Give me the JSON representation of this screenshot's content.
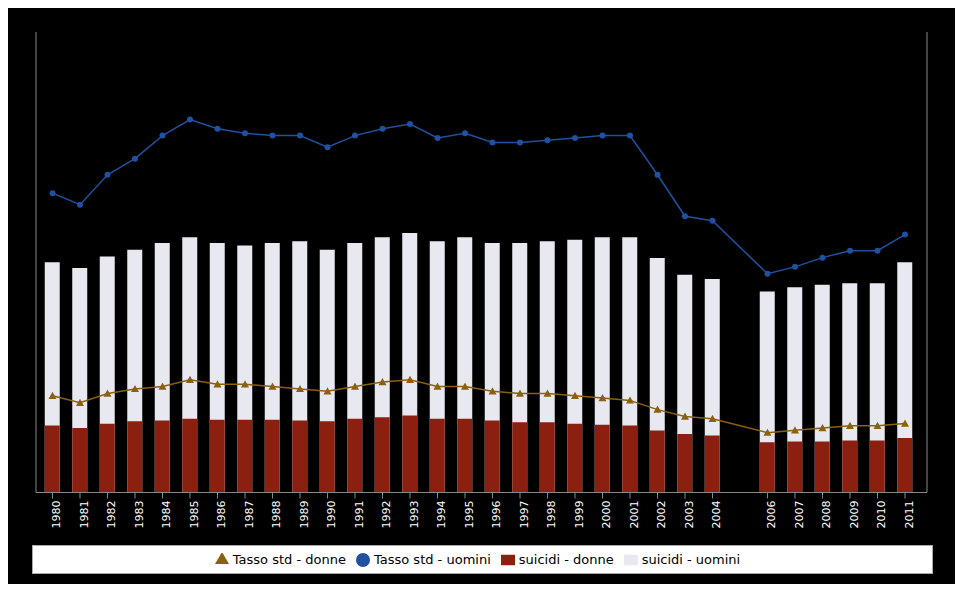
{
  "chart_data": {
    "type": "bar",
    "x": [
      1980,
      1981,
      1982,
      1983,
      1984,
      1985,
      1986,
      1987,
      1988,
      1989,
      1990,
      1991,
      1992,
      1993,
      1994,
      1995,
      1996,
      1997,
      1998,
      1999,
      2000,
      2001,
      2002,
      2003,
      2004,
      2006,
      2007,
      2008,
      2009,
      2010,
      2011
    ],
    "xlim": [
      1979.4,
      2011.8
    ],
    "xticks": [
      1980,
      1981,
      1982,
      1983,
      1984,
      1985,
      1986,
      1987,
      1988,
      1989,
      1990,
      1991,
      1992,
      1993,
      1994,
      1995,
      1996,
      1997,
      1998,
      1999,
      2000,
      2001,
      2002,
      2003,
      2004,
      2006,
      2007,
      2008,
      2009,
      2010,
      2011
    ],
    "ylim": [
      0,
      5500
    ],
    "y2lim": [
      0,
      20
    ],
    "tick_labels": "x",
    "grid": false,
    "legend": "bottom",
    "stacked": false,
    "series": [
      {
        "name": "suicidi - uomini",
        "type": "bar",
        "color": "#e8e8f0",
        "values": [
          2750,
          2680,
          2820,
          2900,
          2980,
          3050,
          2980,
          2950,
          2980,
          3000,
          2900,
          2980,
          3050,
          3100,
          3000,
          3050,
          2980,
          2980,
          3000,
          3020,
          3050,
          3050,
          2800,
          2600,
          2550,
          2400,
          2450,
          2480,
          2500,
          2500,
          2750
        ]
      },
      {
        "name": "suicidi - donne",
        "type": "bar",
        "color": "#8b2010",
        "values": [
          800,
          770,
          820,
          850,
          860,
          880,
          870,
          870,
          870,
          860,
          850,
          880,
          900,
          920,
          880,
          880,
          860,
          840,
          840,
          820,
          810,
          800,
          740,
          700,
          680,
          600,
          610,
          610,
          620,
          620,
          650
        ]
      },
      {
        "name": "Tasso std - uomini",
        "type": "line",
        "axis": "y2",
        "color": "#2050a0",
        "marker": "circle",
        "values": [
          13.0,
          12.5,
          13.8,
          14.5,
          15.5,
          16.2,
          15.8,
          15.6,
          15.5,
          15.5,
          15.0,
          15.5,
          15.8,
          16.0,
          15.4,
          15.6,
          15.2,
          15.2,
          15.3,
          15.4,
          15.5,
          15.5,
          13.8,
          12.0,
          11.8,
          9.5,
          9.8,
          10.2,
          10.5,
          10.5,
          11.2
        ]
      },
      {
        "name": "Tasso std - donne",
        "type": "line",
        "axis": "y2",
        "color": "#8b6010",
        "marker": "triangle",
        "values": [
          4.2,
          3.9,
          4.3,
          4.5,
          4.6,
          4.9,
          4.7,
          4.7,
          4.6,
          4.5,
          4.4,
          4.6,
          4.8,
          4.9,
          4.6,
          4.6,
          4.4,
          4.3,
          4.3,
          4.2,
          4.1,
          4.0,
          3.6,
          3.3,
          3.2,
          2.6,
          2.7,
          2.8,
          2.9,
          2.9,
          3.0
        ]
      }
    ]
  }
}
